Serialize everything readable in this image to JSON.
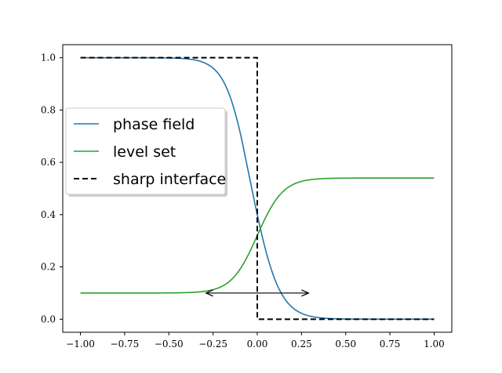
{
  "chart_data": {
    "type": "line",
    "xlim": [
      -1.1,
      1.1
    ],
    "ylim": [
      -0.05,
      1.05
    ],
    "xticks": [
      -1.0,
      -0.75,
      -0.5,
      -0.25,
      0.0,
      0.25,
      0.5,
      0.75,
      1.0
    ],
    "xtick_labels": [
      "−1.00",
      "−0.75",
      "−0.50",
      "−0.25",
      "0.00",
      "0.25",
      "0.50",
      "0.75",
      "1.00"
    ],
    "yticks": [
      0.0,
      0.2,
      0.4,
      0.6,
      0.8,
      1.0
    ],
    "ytick_labels": [
      "0.0",
      "0.2",
      "0.4",
      "0.6",
      "0.8",
      "1.0"
    ],
    "grid": false,
    "legend_position": "center-left",
    "series": [
      {
        "name": "phase field",
        "color": "#1f77b4",
        "style": "solid",
        "x": [
          -1.0,
          -0.9,
          -0.8,
          -0.7,
          -0.6,
          -0.5,
          -0.45,
          -0.4,
          -0.35,
          -0.3,
          -0.25,
          -0.2,
          -0.15,
          -0.1,
          -0.05,
          0.0,
          0.05,
          0.1,
          0.15,
          0.2,
          0.25,
          0.3,
          0.35,
          0.4,
          0.45,
          0.5,
          0.6,
          0.7,
          0.8,
          0.9,
          1.0
        ],
        "y": [
          1.0,
          1.0,
          1.0,
          1.0,
          0.9998,
          0.9991,
          0.998,
          0.9957,
          0.991,
          0.9808,
          0.9603,
          0.9195,
          0.8442,
          0.7231,
          0.5621,
          0.4,
          0.2575,
          0.1512,
          0.0832,
          0.0438,
          0.0226,
          0.0115,
          0.0058,
          0.0029,
          0.0015,
          0.0007,
          0.0002,
          0.0,
          0.0,
          0.0,
          0.0
        ]
      },
      {
        "name": "level set",
        "color": "#2ca02c",
        "style": "solid",
        "x": [
          -1.0,
          -0.9,
          -0.8,
          -0.7,
          -0.6,
          -0.5,
          -0.45,
          -0.4,
          -0.35,
          -0.3,
          -0.25,
          -0.2,
          -0.15,
          -0.1,
          -0.05,
          0.0,
          0.05,
          0.1,
          0.15,
          0.2,
          0.25,
          0.3,
          0.35,
          0.4,
          0.45,
          0.5,
          0.6,
          0.7,
          0.8,
          0.9,
          1.0
        ],
        "y": [
          0.1,
          0.1,
          0.1,
          0.1,
          0.1001,
          0.1004,
          0.1008,
          0.1016,
          0.1032,
          0.1065,
          0.113,
          0.1256,
          0.1489,
          0.1886,
          0.2473,
          0.32,
          0.3927,
          0.4514,
          0.4911,
          0.5144,
          0.527,
          0.5335,
          0.5368,
          0.5384,
          0.5392,
          0.5396,
          0.5399,
          0.54,
          0.54,
          0.54,
          0.54
        ]
      },
      {
        "name": "sharp interface",
        "color": "#000000",
        "style": "dashed",
        "x": [
          -1.0,
          0.0,
          0.0,
          1.0
        ],
        "y": [
          1.0,
          1.0,
          0.0,
          0.0
        ]
      }
    ],
    "annotations": [
      {
        "type": "double-arrow",
        "x_start": -0.29,
        "x_end": 0.29,
        "y": 0.1
      }
    ]
  }
}
